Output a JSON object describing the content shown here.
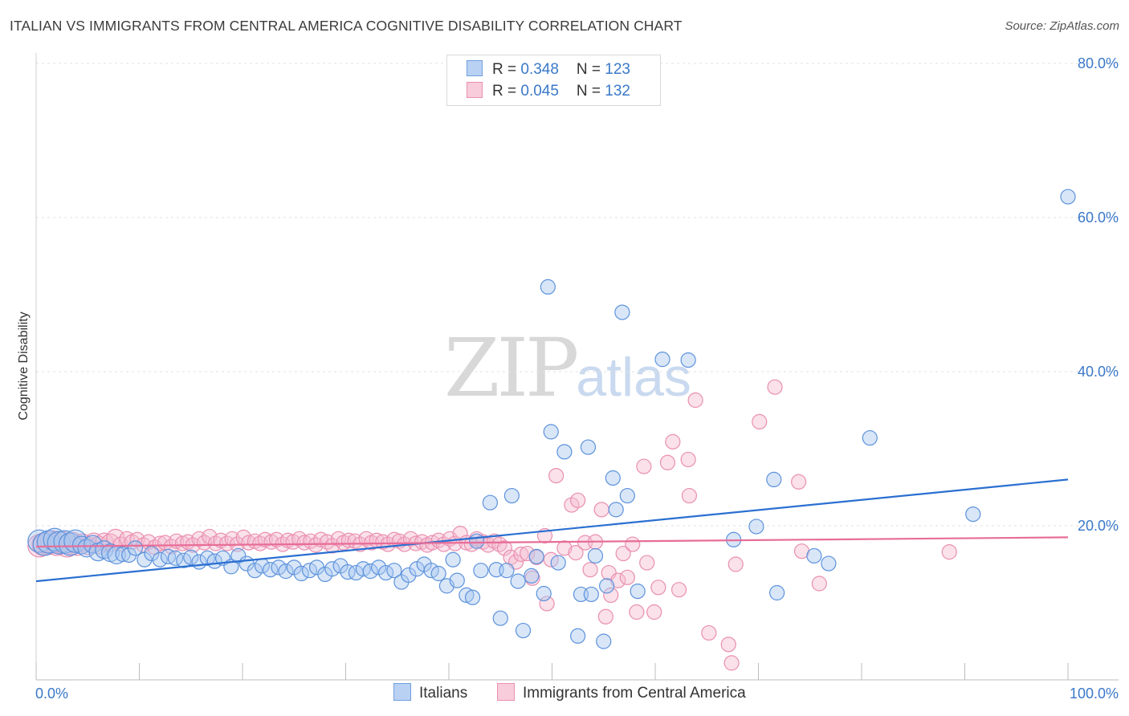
{
  "title": "ITALIAN VS IMMIGRANTS FROM CENTRAL AMERICA COGNITIVE DISABILITY CORRELATION CHART",
  "source": "Source: ZipAtlas.com",
  "watermark": {
    "zip": "ZIP",
    "atlas": "atlas"
  },
  "colors": {
    "blue": "#6f9fe0",
    "blue_fill": "#a9c7f0",
    "blue_line": "#2a6fd1",
    "pink": "#ea8fb0",
    "pink_fill": "#f5bdd0",
    "pink_line": "#e76d97",
    "axis_text": "#3a78c9"
  },
  "legend_top": [
    {
      "r_label": "R = ",
      "r_value": "0.348",
      "n_label": "N = ",
      "n_value": "123"
    },
    {
      "r_label": "R = ",
      "r_value": "0.045",
      "n_label": "N = ",
      "n_value": "132"
    }
  ],
  "chart_data": {
    "type": "scatter",
    "title": "ITALIAN VS IMMIGRANTS FROM CENTRAL AMERICA COGNITIVE DISABILITY CORRELATION CHART",
    "xlabel": "",
    "ylabel": "Cognitive Disability",
    "xlim": [
      0,
      100
    ],
    "ylim": [
      0,
      80
    ],
    "x_tick_labels": [
      "0.0%",
      "100.0%"
    ],
    "y_tick_labels": [
      "20.0%",
      "40.0%",
      "60.0%",
      "80.0%"
    ],
    "y_ticks": [
      20,
      40,
      60,
      80
    ],
    "grid": true,
    "legend_placement": "bottom",
    "series": [
      {
        "name": "Italians",
        "color": "#6f9fe0",
        "r": 0.348,
        "n": 123,
        "trend": [
          [
            0,
            12.8
          ],
          [
            100,
            26
          ]
        ],
        "points": [
          [
            0.3,
            18
          ],
          [
            0.8,
            17.6
          ],
          [
            1.2,
            17.9
          ],
          [
            1.8,
            18.2
          ],
          [
            2.2,
            17.8
          ],
          [
            2.8,
            17.9
          ],
          [
            3.3,
            17.6
          ],
          [
            3.8,
            18
          ],
          [
            4.4,
            17.5
          ],
          [
            4.9,
            17.1
          ],
          [
            5.5,
            17.6
          ],
          [
            6,
            16.6
          ],
          [
            6.6,
            16.9
          ],
          [
            7.2,
            16.5
          ],
          [
            7.8,
            16.2
          ],
          [
            8.4,
            16.3
          ],
          [
            9,
            16.2
          ],
          [
            9.6,
            17.1
          ],
          [
            10.5,
            15.6
          ],
          [
            11.2,
            16.4
          ],
          [
            12,
            15.6
          ],
          [
            12.8,
            16
          ],
          [
            13.5,
            15.8
          ],
          [
            14.3,
            15.5
          ],
          [
            15,
            15.9
          ],
          [
            15.8,
            15.3
          ],
          [
            16.6,
            15.8
          ],
          [
            17.3,
            15.4
          ],
          [
            18.1,
            15.8
          ],
          [
            18.9,
            14.7
          ],
          [
            19.6,
            16.1
          ],
          [
            20.4,
            15.1
          ],
          [
            21.2,
            14.2
          ],
          [
            21.9,
            14.8
          ],
          [
            22.7,
            14.3
          ],
          [
            23.5,
            14.6
          ],
          [
            24.2,
            14.1
          ],
          [
            25,
            14.6
          ],
          [
            25.7,
            13.8
          ],
          [
            26.5,
            14.2
          ],
          [
            27.2,
            14.6
          ],
          [
            28,
            13.7
          ],
          [
            28.7,
            14.4
          ],
          [
            29.5,
            14.8
          ],
          [
            30.2,
            14
          ],
          [
            31,
            13.9
          ],
          [
            31.7,
            14.4
          ],
          [
            32.4,
            14.1
          ],
          [
            33.2,
            14.6
          ],
          [
            33.9,
            13.9
          ],
          [
            34.7,
            14.2
          ],
          [
            35.4,
            12.7
          ],
          [
            36.1,
            13.6
          ],
          [
            36.9,
            14.4
          ],
          [
            37.6,
            15
          ],
          [
            38.3,
            14.2
          ],
          [
            39,
            13.8
          ],
          [
            39.8,
            12.2
          ],
          [
            40.4,
            15.6
          ],
          [
            40.8,
            12.9
          ],
          [
            41.7,
            11
          ],
          [
            42.3,
            10.7
          ],
          [
            42.7,
            18
          ],
          [
            43.1,
            14.2
          ],
          [
            44,
            23
          ],
          [
            44.6,
            14.3
          ],
          [
            45,
            8
          ],
          [
            45.6,
            14.2
          ],
          [
            46.1,
            23.9
          ],
          [
            46.7,
            12.8
          ],
          [
            47.2,
            6.4
          ],
          [
            48,
            13.5
          ],
          [
            48.5,
            16
          ],
          [
            49.2,
            11.2
          ],
          [
            49.6,
            51
          ],
          [
            49.9,
            32.2
          ],
          [
            50.6,
            15.2
          ],
          [
            51.2,
            29.6
          ],
          [
            52.5,
            5.7
          ],
          [
            52.8,
            11.1
          ],
          [
            53.5,
            30.2
          ],
          [
            53.8,
            11.1
          ],
          [
            54.2,
            16.1
          ],
          [
            55,
            5
          ],
          [
            55.3,
            12.2
          ],
          [
            55.9,
            26.2
          ],
          [
            56.2,
            22.1
          ],
          [
            56.8,
            47.7
          ],
          [
            57.3,
            23.9
          ],
          [
            58.3,
            11.5
          ],
          [
            60.7,
            41.6
          ],
          [
            63.2,
            41.5
          ],
          [
            67.6,
            18.2
          ],
          [
            69.8,
            19.9
          ],
          [
            71.5,
            26
          ],
          [
            71.8,
            11.3
          ],
          [
            75.4,
            16.1
          ],
          [
            76.8,
            15.1
          ],
          [
            80.8,
            31.4
          ],
          [
            90.8,
            21.5
          ],
          [
            100,
            62.7
          ]
        ]
      },
      {
        "name": "Immigrants from Central America",
        "color": "#ea8fb0",
        "r": 0.045,
        "n": 132,
        "trend": [
          [
            0,
            17.3
          ],
          [
            100,
            18.5
          ]
        ],
        "points": [
          [
            0.3,
            17.4
          ],
          [
            0.7,
            17.6
          ],
          [
            1.1,
            17.7
          ],
          [
            1.5,
            17.9
          ],
          [
            2,
            17.6
          ],
          [
            2.5,
            17.8
          ],
          [
            3,
            17.4
          ],
          [
            3.5,
            17.7
          ],
          [
            4,
            17.3
          ],
          [
            4.5,
            17.8
          ],
          [
            5,
            17.4
          ],
          [
            5.6,
            17.9
          ],
          [
            6.1,
            17.5
          ],
          [
            6.6,
            17.9
          ],
          [
            7.2,
            17.8
          ],
          [
            7.7,
            18.4
          ],
          [
            8.2,
            17.6
          ],
          [
            8.8,
            18.3
          ],
          [
            9.3,
            17.9
          ],
          [
            9.8,
            18.2
          ],
          [
            10.4,
            17.5
          ],
          [
            10.9,
            17.9
          ],
          [
            11.5,
            17.2
          ],
          [
            12,
            17.7
          ],
          [
            12.5,
            17.8
          ],
          [
            13.1,
            17.3
          ],
          [
            13.6,
            18
          ],
          [
            14.2,
            17.7
          ],
          [
            14.7,
            17.9
          ],
          [
            15.2,
            17.5
          ],
          [
            15.8,
            18.3
          ],
          [
            16.3,
            17.8
          ],
          [
            16.8,
            18.6
          ],
          [
            17.4,
            17.7
          ],
          [
            17.9,
            18.1
          ],
          [
            18.5,
            17.7
          ],
          [
            19,
            18.3
          ],
          [
            19.5,
            17.6
          ],
          [
            20.1,
            18.5
          ],
          [
            20.6,
            17.8
          ],
          [
            21.2,
            18
          ],
          [
            21.7,
            17.7
          ],
          [
            22.2,
            18.2
          ],
          [
            22.8,
            17.9
          ],
          [
            23.3,
            18.2
          ],
          [
            23.9,
            17.6
          ],
          [
            24.4,
            18.1
          ],
          [
            24.9,
            17.9
          ],
          [
            25.5,
            18.3
          ],
          [
            26,
            17.8
          ],
          [
            26.6,
            18
          ],
          [
            27.1,
            17.5
          ],
          [
            27.6,
            18.2
          ],
          [
            28.2,
            17.9
          ],
          [
            28.7,
            17.4
          ],
          [
            29.3,
            18.3
          ],
          [
            29.8,
            17.8
          ],
          [
            30.3,
            18.1
          ],
          [
            30.9,
            18
          ],
          [
            31.4,
            17.6
          ],
          [
            32,
            18.3
          ],
          [
            32.5,
            17.8
          ],
          [
            33,
            18.1
          ],
          [
            33.6,
            17.9
          ],
          [
            34.1,
            17.6
          ],
          [
            34.7,
            18.2
          ],
          [
            35.2,
            18
          ],
          [
            35.7,
            17.6
          ],
          [
            36.3,
            18.3
          ],
          [
            36.8,
            17.7
          ],
          [
            37.4,
            17.9
          ],
          [
            37.9,
            17.5
          ],
          [
            38.4,
            17.8
          ],
          [
            39,
            18.1
          ],
          [
            39.5,
            17.6
          ],
          [
            40.1,
            18.3
          ],
          [
            40.6,
            17.7
          ],
          [
            41.1,
            19
          ],
          [
            41.7,
            17.8
          ],
          [
            42.2,
            17.6
          ],
          [
            42.7,
            18.3
          ],
          [
            43.3,
            17.9
          ],
          [
            43.8,
            17.5
          ],
          [
            44.4,
            18
          ],
          [
            44.9,
            17.6
          ],
          [
            45.4,
            17.1
          ],
          [
            46,
            15.9
          ],
          [
            46.5,
            15.3
          ],
          [
            47,
            16.3
          ],
          [
            47.6,
            16.4
          ],
          [
            48.1,
            13.2
          ],
          [
            48.5,
            15.9
          ],
          [
            49.3,
            18.7
          ],
          [
            49.5,
            9.9
          ],
          [
            49.9,
            15.6
          ],
          [
            50.4,
            26.5
          ],
          [
            51.2,
            17.1
          ],
          [
            51.9,
            22.7
          ],
          [
            52.3,
            16.5
          ],
          [
            52.5,
            23.3
          ],
          [
            53.2,
            17.8
          ],
          [
            53.7,
            14.3
          ],
          [
            54.2,
            17.9
          ],
          [
            54.8,
            22.1
          ],
          [
            55.2,
            8.2
          ],
          [
            55.5,
            13.9
          ],
          [
            55.7,
            11
          ],
          [
            56.4,
            12.9
          ],
          [
            56.9,
            16.4
          ],
          [
            57.3,
            13.3
          ],
          [
            57.8,
            17.6
          ],
          [
            58.2,
            8.8
          ],
          [
            58.9,
            27.7
          ],
          [
            59.2,
            15.2
          ],
          [
            59.9,
            8.8
          ],
          [
            60.3,
            12
          ],
          [
            61.2,
            28.2
          ],
          [
            61.7,
            30.9
          ],
          [
            62.3,
            11.7
          ],
          [
            63.3,
            23.9
          ],
          [
            63.2,
            28.6
          ],
          [
            63.9,
            36.3
          ],
          [
            65.2,
            6.1
          ],
          [
            67.1,
            4.6
          ],
          [
            67.4,
            2.2
          ],
          [
            67.8,
            15
          ],
          [
            70.1,
            33.5
          ],
          [
            71.6,
            38
          ],
          [
            73.9,
            25.7
          ],
          [
            74.2,
            16.7
          ],
          [
            75.9,
            12.5
          ],
          [
            88.5,
            16.6
          ]
        ]
      }
    ]
  },
  "bottom_legend": [
    {
      "label": "Italians"
    },
    {
      "label": "Immigrants from Central America"
    }
  ]
}
